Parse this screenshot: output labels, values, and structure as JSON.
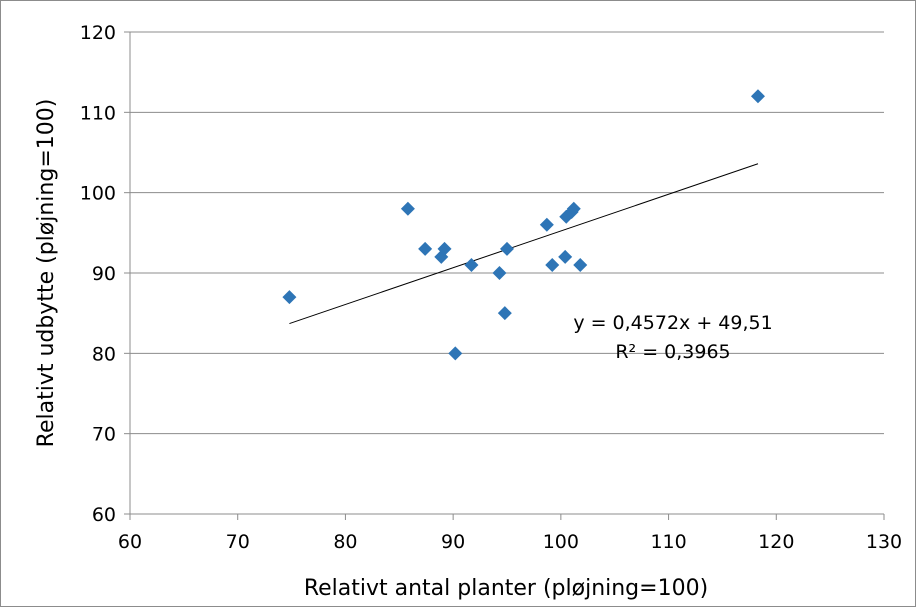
{
  "chart_data": {
    "type": "scatter",
    "title": "",
    "xlabel": "Relativt antal planter (pløjning=100)",
    "ylabel": "Relativt udbytte (pløjning=100)",
    "xlim": [
      60,
      130
    ],
    "ylim": [
      60,
      120
    ],
    "x_ticks": [
      "60",
      "70",
      "80",
      "90",
      "100",
      "110",
      "120",
      "130"
    ],
    "y_ticks": [
      "60",
      "70",
      "80",
      "90",
      "100",
      "110",
      "120"
    ],
    "grid": {
      "horizontal": true,
      "vertical": false
    },
    "marker_color": "#2e75b6",
    "marker_shape": "diamond",
    "points": [
      {
        "x": 74.8,
        "y": 87
      },
      {
        "x": 85.8,
        "y": 98
      },
      {
        "x": 87.4,
        "y": 93
      },
      {
        "x": 88.9,
        "y": 92
      },
      {
        "x": 89.2,
        "y": 93
      },
      {
        "x": 90.2,
        "y": 80
      },
      {
        "x": 91.7,
        "y": 91
      },
      {
        "x": 94.3,
        "y": 90
      },
      {
        "x": 94.8,
        "y": 85
      },
      {
        "x": 95.0,
        "y": 93
      },
      {
        "x": 98.7,
        "y": 96
      },
      {
        "x": 99.2,
        "y": 91
      },
      {
        "x": 100.4,
        "y": 92
      },
      {
        "x": 100.5,
        "y": 97
      },
      {
        "x": 101.0,
        "y": 97.6
      },
      {
        "x": 101.2,
        "y": 98
      },
      {
        "x": 101.8,
        "y": 91
      },
      {
        "x": 118.3,
        "y": 112
      }
    ],
    "trendline": {
      "type": "linear",
      "slope": 0.4572,
      "intercept": 49.51,
      "x_range": [
        74.8,
        118.3
      ],
      "color": "#000000",
      "equation_label": "y = 0,4572x + 49,51",
      "r2_label": "R² = 0,3965"
    }
  }
}
